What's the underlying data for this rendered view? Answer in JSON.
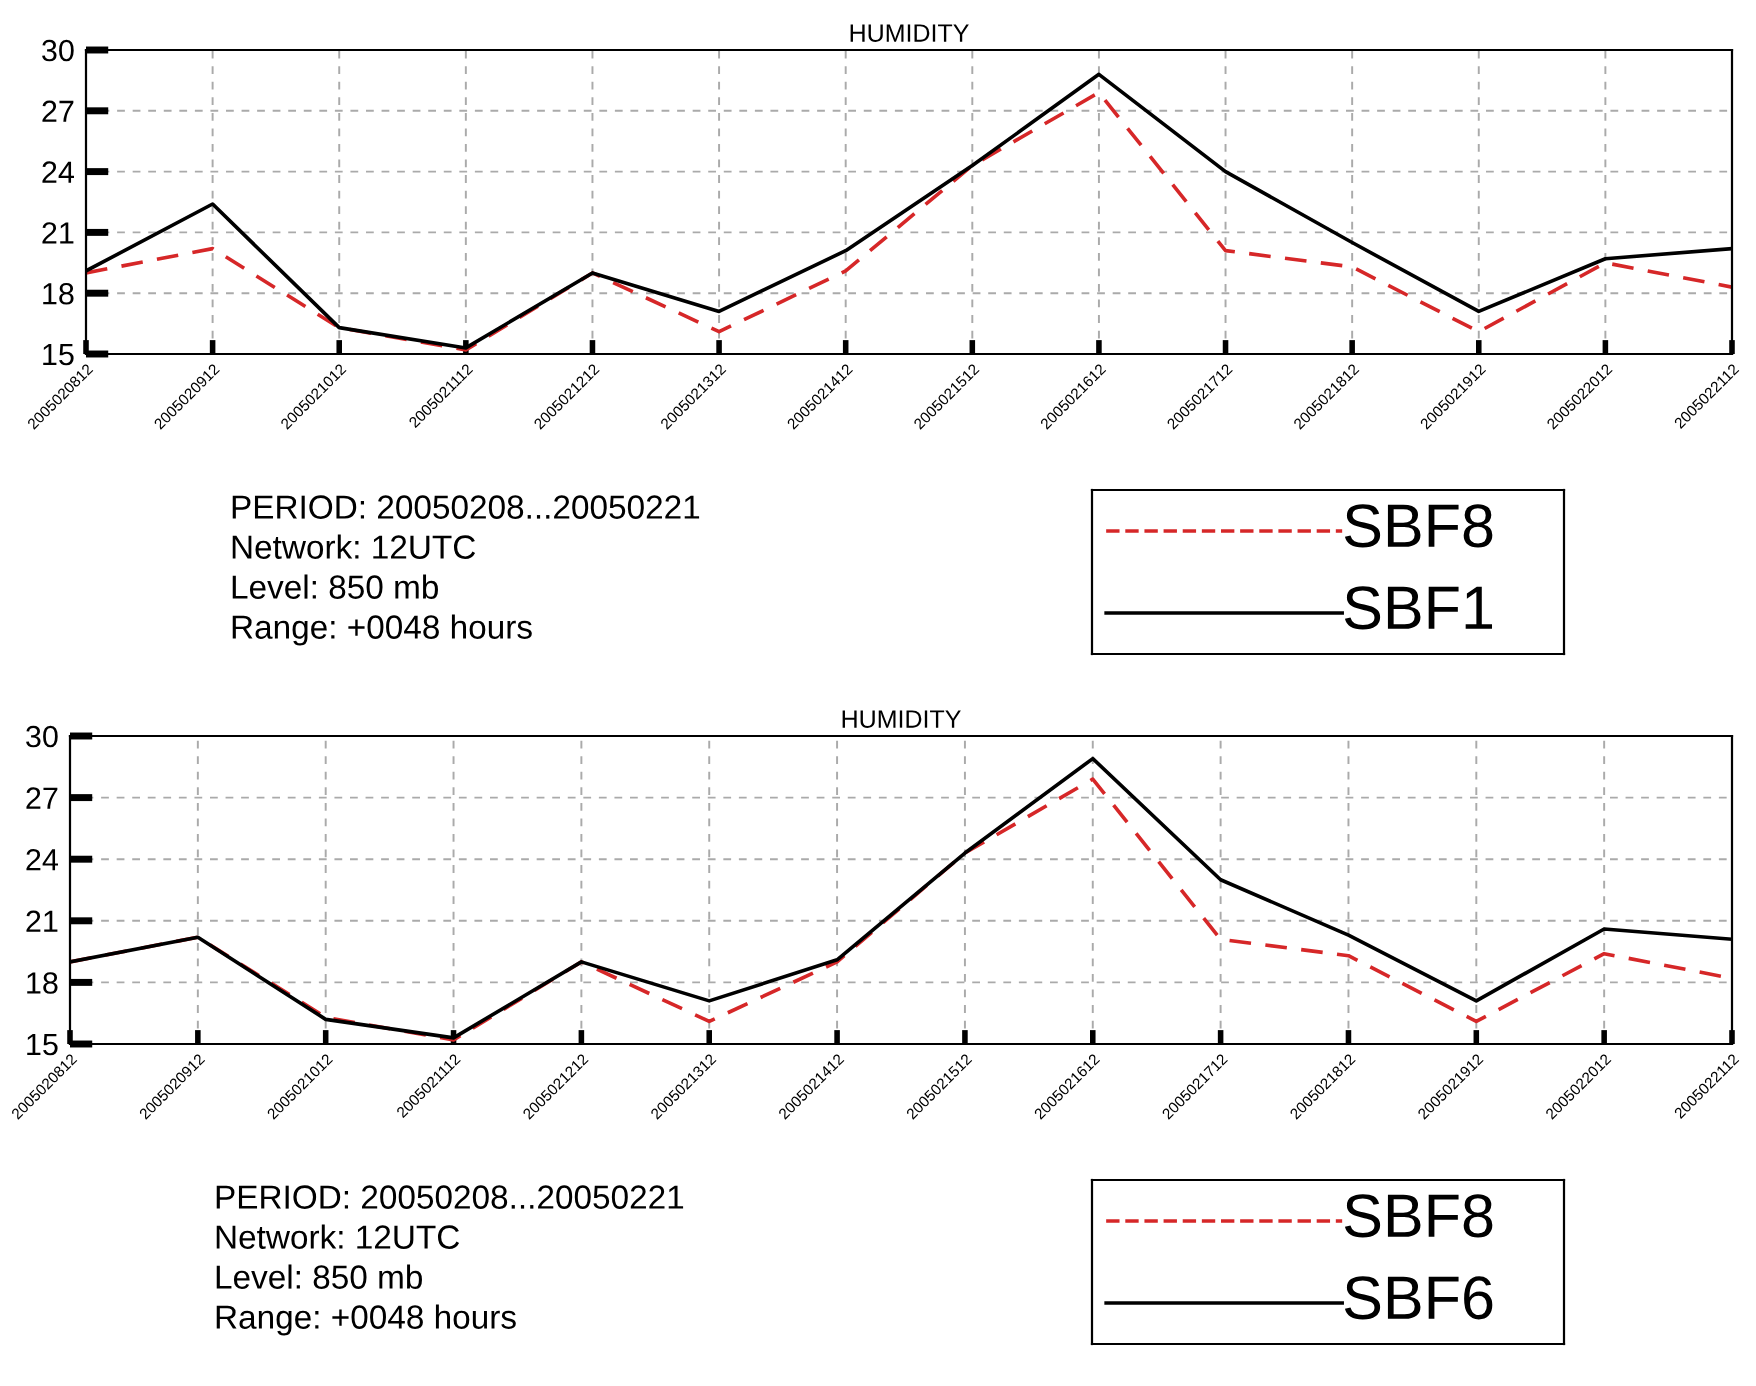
{
  "chart_data": [
    {
      "type": "line",
      "title": "HUMIDITY",
      "categories": [
        "2005020812",
        "2005020912",
        "2005021012",
        "2005021112",
        "2005021212",
        "2005021312",
        "2005021412",
        "2005021512",
        "2005021612",
        "2005021712",
        "2005021812",
        "2005021912",
        "2005022012",
        "2005022112"
      ],
      "series": [
        {
          "name": "SBF8",
          "color": "#d62728",
          "line_style": "dashed",
          "values": [
            19.0,
            20.2,
            16.3,
            15.2,
            19.0,
            16.1,
            19.1,
            24.3,
            27.9,
            20.1,
            19.3,
            16.1,
            19.5,
            18.3
          ]
        },
        {
          "name": "SBF1",
          "color": "#000000",
          "line_style": "solid",
          "values": [
            19.1,
            22.4,
            16.3,
            15.3,
            19.0,
            17.1,
            20.1,
            24.3,
            28.8,
            24.0,
            20.5,
            17.1,
            19.7,
            20.2
          ]
        }
      ],
      "ylim": [
        15,
        30
      ],
      "yticks": [
        15,
        18,
        21,
        24,
        27,
        30
      ],
      "grid": true,
      "legend": "bottom right",
      "marker": "none",
      "annotations": [
        "PERIOD: 20050208...20050221",
        "Network: 12UTC",
        "Level: 850 mb",
        "Range: +0048 hours"
      ]
    },
    {
      "type": "line",
      "title": "HUMIDITY",
      "categories": [
        "2005020812",
        "2005020912",
        "2005021012",
        "2005021112",
        "2005021212",
        "2005021312",
        "2005021412",
        "2005021512",
        "2005021612",
        "2005021712",
        "2005021812",
        "2005021912",
        "2005022012",
        "2005022112"
      ],
      "series": [
        {
          "name": "SBF8",
          "color": "#d62728",
          "line_style": "dashed",
          "values": [
            19.0,
            20.2,
            16.3,
            15.2,
            19.0,
            16.1,
            19.0,
            24.3,
            27.9,
            20.1,
            19.3,
            16.1,
            19.4,
            18.2
          ]
        },
        {
          "name": "SBF6",
          "color": "#000000",
          "line_style": "solid",
          "values": [
            19.0,
            20.2,
            16.2,
            15.3,
            19.0,
            17.1,
            19.1,
            24.3,
            28.9,
            23.0,
            20.3,
            17.1,
            20.6,
            20.1
          ]
        }
      ],
      "ylim": [
        15,
        30
      ],
      "yticks": [
        15,
        18,
        21,
        24,
        27,
        30
      ],
      "grid": true,
      "legend": "bottom right",
      "marker": "none",
      "annotations": [
        "PERIOD: 20050208...20050221",
        "Network: 12UTC",
        "Level: 850 mb",
        "Range: +0048 hours"
      ]
    }
  ]
}
